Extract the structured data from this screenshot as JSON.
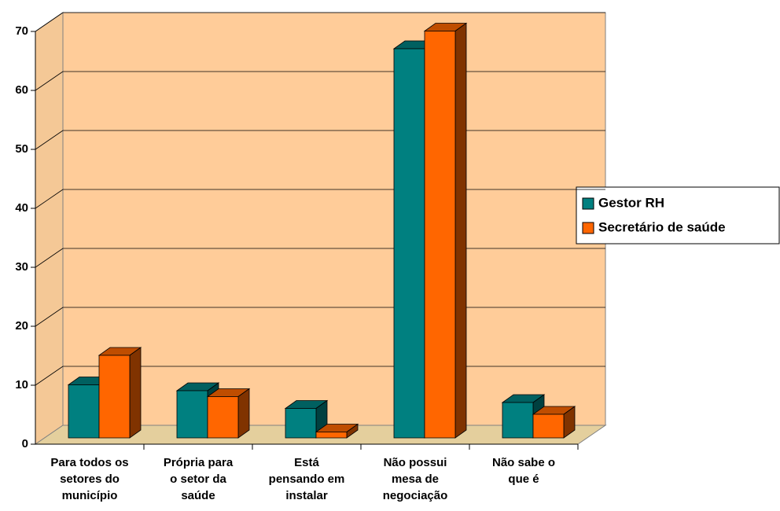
{
  "chart_data": {
    "type": "bar3d",
    "categories": [
      "Para todos os\nsetores do\nmunicípio",
      "Própria para\no setor da\nsaúde",
      "Está\npensando em\ninstalar",
      "Não possui\nmesa de\nnegociação",
      "Não sabe o\nque é"
    ],
    "series": [
      {
        "name": "Gestor RH",
        "color": "#008080",
        "values": [
          9,
          8,
          5,
          66,
          6
        ]
      },
      {
        "name": "Secretário de saúde",
        "color": "#ff6600",
        "values": [
          14,
          7,
          1,
          69,
          4
        ]
      }
    ],
    "ylim": [
      0,
      70
    ],
    "yticks": [
      0,
      10,
      20,
      30,
      40,
      50,
      60,
      70
    ],
    "grid": true,
    "legend": "right"
  }
}
